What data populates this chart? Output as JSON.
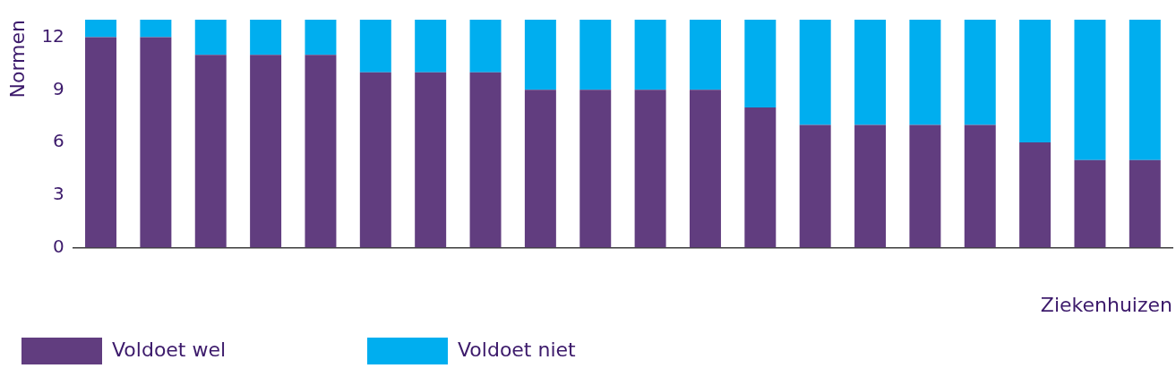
{
  "chart_data": {
    "type": "bar",
    "stacked": true,
    "xlabel": "Ziekenhuizen",
    "ylabel": "Normen",
    "categories": [
      null,
      null,
      null,
      null,
      null,
      null,
      null,
      null,
      null,
      null,
      null,
      null,
      null,
      null,
      null,
      null,
      null,
      null,
      null,
      null
    ],
    "series": [
      {
        "name": "Voldoet wel",
        "color": "#613d7f",
        "values": [
          12,
          12,
          11,
          11,
          11,
          10,
          10,
          10,
          9,
          9,
          9,
          9,
          8,
          7,
          7,
          7,
          7,
          6,
          5,
          5
        ]
      },
      {
        "name": "Voldoet niet",
        "color": "#00aeef",
        "values": [
          1,
          1,
          2,
          2,
          2,
          3,
          3,
          3,
          4,
          4,
          4,
          4,
          5,
          6,
          6,
          6,
          6,
          7,
          8,
          8
        ]
      }
    ],
    "ylim": [
      0,
      13
    ],
    "yticks": [
      0,
      3,
      6,
      9,
      12
    ],
    "grid": false,
    "legend": "bottom left"
  }
}
